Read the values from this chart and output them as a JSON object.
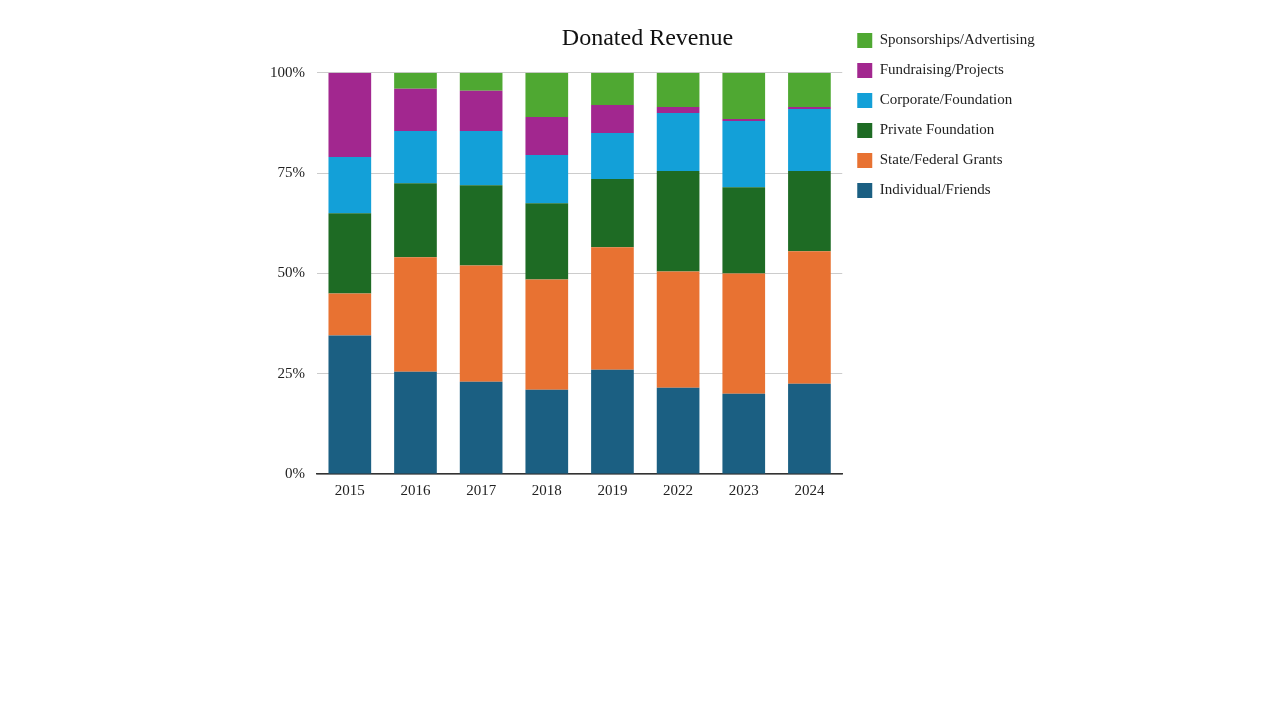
{
  "chart_data": {
    "type": "bar",
    "title": "Donated Revenue",
    "stacked": true,
    "grid": "y",
    "legend": "right",
    "categories": [
      "2015",
      "2016",
      "2017",
      "2018",
      "2019",
      "2022",
      "2023",
      "2024"
    ],
    "ylim": [
      0,
      100
    ],
    "yticks": [
      {
        "value": 0,
        "label": "0%"
      },
      {
        "value": 25,
        "label": "25%"
      },
      {
        "value": 50,
        "label": "50%"
      },
      {
        "value": 75,
        "label": "75%"
      },
      {
        "value": 100,
        "label": "100%"
      }
    ],
    "series": [
      {
        "name": "Individual/Friends",
        "color": "#1b5f82",
        "values": [
          34.5,
          25.5,
          23,
          21,
          26,
          21.5,
          20,
          22.5
        ]
      },
      {
        "name": "State/Federal Grants",
        "color": "#e87232",
        "values": [
          10.5,
          28.5,
          29,
          27.5,
          30.5,
          29,
          30,
          33
        ]
      },
      {
        "name": "Private Foundation",
        "color": "#1e6b24",
        "values": [
          20,
          18.5,
          20,
          19,
          17,
          25,
          21.5,
          20
        ]
      },
      {
        "name": "Corporate/Foundation",
        "color": "#13a0d8",
        "values": [
          14,
          13,
          13.5,
          12,
          11.5,
          14.5,
          16.5,
          15.5
        ]
      },
      {
        "name": "Fundraising/Projects",
        "color": "#a2278f",
        "values": [
          21,
          10.5,
          10,
          9.5,
          7,
          1.5,
          0.5,
          0.5
        ]
      },
      {
        "name": "Sponsorships/Advertising",
        "color": "#4fa832",
        "values": [
          0,
          4,
          4.5,
          11,
          8,
          8.5,
          11.5,
          8.5
        ]
      }
    ]
  }
}
